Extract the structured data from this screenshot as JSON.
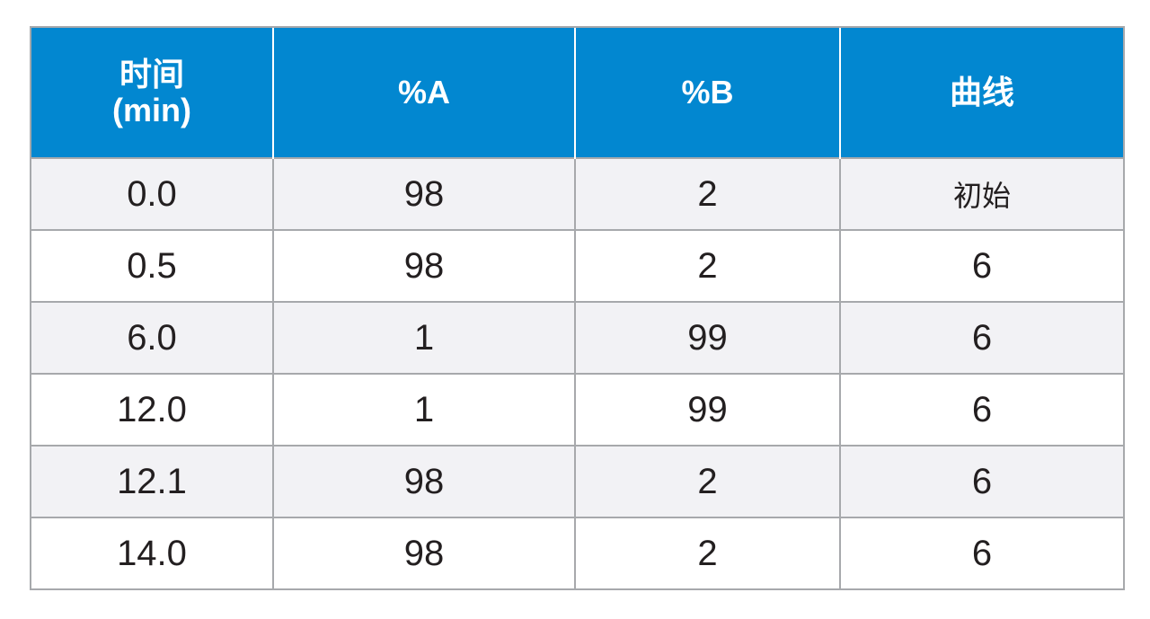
{
  "table": {
    "headers": [
      [
        "时间",
        "(min)"
      ],
      [
        "%A"
      ],
      [
        "%B"
      ],
      [
        "曲线"
      ]
    ],
    "rows": [
      [
        "0.0",
        "98",
        "2",
        "初始"
      ],
      [
        "0.5",
        "98",
        "2",
        "6"
      ],
      [
        "6.0",
        "1",
        "99",
        "6"
      ],
      [
        "12.0",
        "1",
        "99",
        "6"
      ],
      [
        "12.1",
        "98",
        "2",
        "6"
      ],
      [
        "14.0",
        "98",
        "2",
        "6"
      ]
    ]
  },
  "colors": {
    "header_bg": "#0287d0",
    "header_text": "#ffffff",
    "row_alt_bg": "#f2f2f5",
    "border": "#a7a9ac",
    "cell_text": "#231f20"
  }
}
